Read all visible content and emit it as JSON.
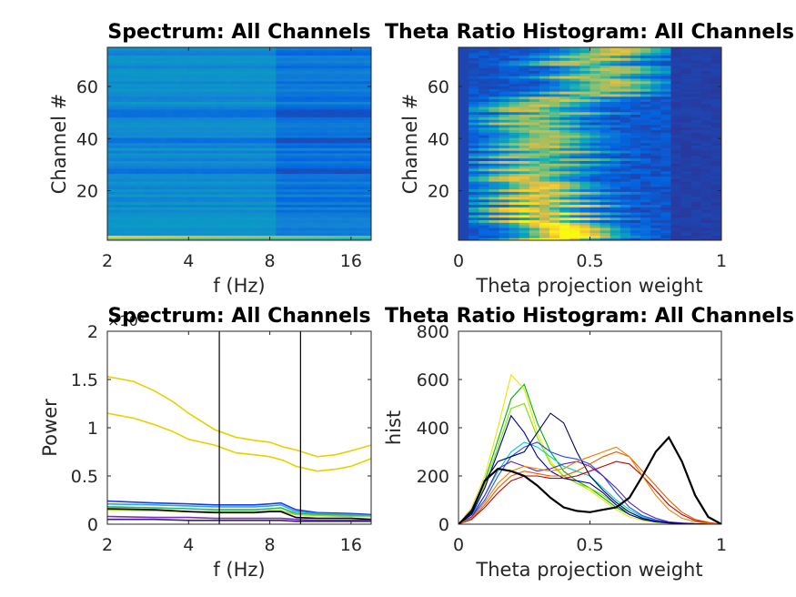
{
  "chart_data": [
    {
      "type": "heatmap",
      "title": "Spectrum: All Channels",
      "xlabel": "f (Hz)",
      "ylabel": "Channel #",
      "x_scale": "log2",
      "xlim": [
        2,
        19
      ],
      "ylim": [
        1,
        75
      ],
      "xticks": [
        "2",
        "4",
        "8",
        "16"
      ],
      "yticks": [
        "20",
        "40",
        "60"
      ],
      "colormap": "parula"
    },
    {
      "type": "heatmap",
      "title": "Theta Ratio Histogram: All Channels",
      "xlabel": "Theta projection weight",
      "ylabel": "Channel #",
      "xlim": [
        0,
        1
      ],
      "ylim": [
        1,
        75
      ],
      "xticks": [
        "0",
        "0.5",
        "1"
      ],
      "yticks": [
        "20",
        "40",
        "60"
      ],
      "colormap": "parula"
    },
    {
      "type": "line",
      "title": "Spectrum: All Channels",
      "xlabel": "f (Hz)",
      "ylabel": "Power",
      "x_scale": "log2",
      "xlim": [
        2,
        19
      ],
      "ylim": [
        0,
        2
      ],
      "y_multiplier": "×10⁶",
      "xticks": [
        "2",
        "4",
        "8",
        "16"
      ],
      "yticks": [
        "0",
        "0.5",
        "1",
        "1.5",
        "2"
      ],
      "vlines": [
        5.2,
        10.4
      ],
      "series": [
        {
          "color": "#e8d000",
          "x": [
            2,
            2.5,
            3,
            3.5,
            4,
            5,
            6,
            7,
            8,
            9,
            10,
            12,
            14,
            16,
            19
          ],
          "values": [
            1.53,
            1.48,
            1.38,
            1.27,
            1.15,
            0.98,
            0.9,
            0.87,
            0.85,
            0.8,
            0.77,
            0.7,
            0.72,
            0.76,
            0.82
          ]
        },
        {
          "color": "#e8d000",
          "x": [
            2,
            2.5,
            3,
            3.5,
            4,
            5,
            6,
            7,
            8,
            9,
            10,
            12,
            14,
            16,
            19
          ],
          "values": [
            1.15,
            1.1,
            1.03,
            0.96,
            0.88,
            0.82,
            0.74,
            0.72,
            0.7,
            0.66,
            0.6,
            0.55,
            0.57,
            0.6,
            0.68
          ]
        },
        {
          "color": "#1e3cdc",
          "x": [
            2,
            3,
            4,
            5,
            6,
            7,
            8,
            8.8,
            10,
            12,
            16,
            19
          ],
          "values": [
            0.24,
            0.22,
            0.21,
            0.2,
            0.2,
            0.2,
            0.21,
            0.22,
            0.15,
            0.12,
            0.11,
            0.1
          ]
        },
        {
          "color": "#2aa8e0",
          "x": [
            2,
            3,
            4,
            5,
            6,
            7,
            8,
            8.8,
            10,
            12,
            16,
            19
          ],
          "values": [
            0.21,
            0.2,
            0.19,
            0.18,
            0.18,
            0.18,
            0.19,
            0.2,
            0.13,
            0.11,
            0.1,
            0.09
          ]
        },
        {
          "color": "#24b46c",
          "x": [
            2,
            3,
            4,
            5,
            6,
            7,
            8,
            8.8,
            10,
            12,
            16,
            19
          ],
          "values": [
            0.18,
            0.17,
            0.16,
            0.15,
            0.15,
            0.15,
            0.16,
            0.17,
            0.11,
            0.1,
            0.09,
            0.08
          ]
        },
        {
          "color": "#a0d420",
          "x": [
            2,
            3,
            4,
            5,
            6,
            7,
            8,
            8.8,
            10,
            12,
            16,
            19
          ],
          "values": [
            0.15,
            0.14,
            0.13,
            0.13,
            0.13,
            0.13,
            0.14,
            0.14,
            0.1,
            0.09,
            0.08,
            0.08
          ]
        },
        {
          "color": "#000000",
          "x": [
            2,
            3,
            4,
            5,
            6,
            7,
            8,
            8.8,
            10,
            12,
            16,
            19
          ],
          "values": [
            0.16,
            0.15,
            0.13,
            0.12,
            0.12,
            0.12,
            0.13,
            0.13,
            0.07,
            0.06,
            0.06,
            0.05
          ]
        },
        {
          "color": "#7a2fb0",
          "x": [
            2,
            3,
            4,
            5,
            6,
            7,
            8,
            8.8,
            10,
            12,
            16,
            19
          ],
          "values": [
            0.08,
            0.07,
            0.07,
            0.06,
            0.06,
            0.06,
            0.06,
            0.06,
            0.05,
            0.04,
            0.04,
            0.04
          ]
        },
        {
          "color": "#3a1a8c",
          "x": [
            2,
            3,
            4,
            5,
            6,
            7,
            8,
            8.8,
            10,
            12,
            16,
            19
          ],
          "values": [
            0.05,
            0.05,
            0.04,
            0.04,
            0.04,
            0.04,
            0.04,
            0.04,
            0.03,
            0.03,
            0.03,
            0.03
          ]
        }
      ]
    },
    {
      "type": "line",
      "title": "Theta Ratio Histogram: All Channels",
      "xlabel": "Theta projection weight",
      "ylabel": "hist",
      "xlim": [
        0,
        1
      ],
      "ylim": [
        0,
        800
      ],
      "xticks": [
        "0",
        "0.5",
        "1"
      ],
      "yticks": [
        "0",
        "200",
        "400",
        "600",
        "800"
      ],
      "x": [
        0,
        0.05,
        0.1,
        0.15,
        0.2,
        0.25,
        0.3,
        0.35,
        0.4,
        0.45,
        0.5,
        0.55,
        0.6,
        0.65,
        0.7,
        0.75,
        0.8,
        0.85,
        0.9,
        0.95,
        1.0
      ],
      "series": [
        {
          "color": "#00b000",
          "values": [
            0,
            60,
            180,
            350,
            520,
            580,
            420,
            300,
            220,
            180,
            150,
            110,
            70,
            40,
            20,
            10,
            5,
            3,
            2,
            1,
            0
          ]
        },
        {
          "color": "#e8e800",
          "values": [
            0,
            70,
            200,
            400,
            620,
            560,
            380,
            260,
            200,
            170,
            140,
            100,
            60,
            30,
            15,
            8,
            4,
            2,
            1,
            1,
            0
          ]
        },
        {
          "color": "#80e000",
          "values": [
            0,
            50,
            160,
            320,
            480,
            500,
            360,
            250,
            200,
            170,
            150,
            120,
            80,
            50,
            25,
            12,
            6,
            3,
            2,
            1,
            0
          ]
        },
        {
          "color": "#00d0d0",
          "values": [
            0,
            40,
            120,
            220,
            300,
            340,
            320,
            280,
            240,
            220,
            200,
            150,
            100,
            60,
            30,
            15,
            7,
            4,
            2,
            1,
            0
          ]
        },
        {
          "color": "#1e50f0",
          "values": [
            0,
            30,
            100,
            200,
            280,
            320,
            340,
            300,
            280,
            270,
            250,
            200,
            130,
            70,
            35,
            18,
            8,
            4,
            2,
            1,
            0
          ]
        },
        {
          "color": "#0000a0",
          "values": [
            0,
            40,
            150,
            300,
            450,
            380,
            280,
            220,
            190,
            180,
            170,
            130,
            80,
            40,
            20,
            10,
            5,
            2,
            1,
            1,
            0
          ]
        },
        {
          "color": "#6020c0",
          "values": [
            0,
            30,
            120,
            230,
            260,
            240,
            220,
            230,
            250,
            260,
            240,
            200,
            150,
            90,
            50,
            25,
            10,
            5,
            2,
            1,
            0
          ]
        },
        {
          "color": "#000060",
          "values": [
            0,
            60,
            180,
            260,
            280,
            300,
            380,
            460,
            420,
            300,
            200,
            140,
            90,
            50,
            25,
            12,
            6,
            3,
            2,
            1,
            0
          ]
        },
        {
          "color": "#e06000",
          "values": [
            0,
            20,
            80,
            150,
            200,
            220,
            210,
            200,
            200,
            220,
            250,
            280,
            300,
            280,
            220,
            160,
            100,
            50,
            20,
            8,
            0
          ]
        },
        {
          "color": "#c00000",
          "values": [
            0,
            20,
            70,
            130,
            180,
            200,
            200,
            190,
            190,
            200,
            220,
            240,
            260,
            250,
            200,
            140,
            80,
            40,
            15,
            5,
            0
          ]
        },
        {
          "color": "#f08000",
          "values": [
            0,
            25,
            90,
            170,
            220,
            240,
            230,
            220,
            230,
            260,
            280,
            300,
            320,
            280,
            200,
            120,
            60,
            25,
            10,
            4,
            0
          ]
        },
        {
          "color": "#000000",
          "values": [
            0,
            50,
            180,
            230,
            220,
            200,
            160,
            110,
            70,
            55,
            50,
            60,
            70,
            110,
            200,
            300,
            360,
            260,
            120,
            30,
            0
          ]
        }
      ]
    }
  ]
}
